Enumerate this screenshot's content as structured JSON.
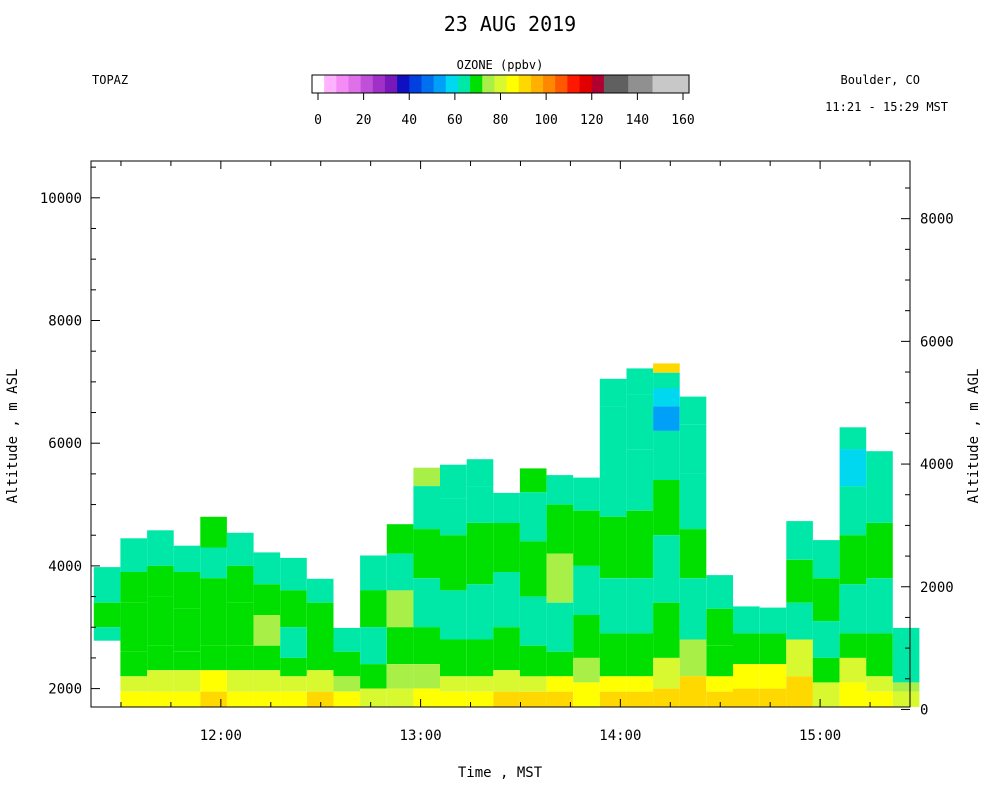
{
  "header": {
    "left_label": "TOPAZ",
    "right_label": "Boulder, CO",
    "time_range": "11:21 - 15:29 MST"
  },
  "colorbar": {
    "title": "OZONE (ppbv)",
    "ticks": [
      "0",
      "20",
      "40",
      "60",
      "80",
      "100",
      "120",
      "140",
      "160"
    ],
    "min": 0,
    "max": 160,
    "colors": [
      "#ffffff",
      "#ffb3ff",
      "#f58cf5",
      "#e070e8",
      "#c050d8",
      "#a030c8",
      "#7818b8",
      "#1010c0",
      "#0040e0",
      "#0070f0",
      "#00a0f8",
      "#00d8f0",
      "#00e8a8",
      "#00e000",
      "#a8f048",
      "#d8f830",
      "#ffff00",
      "#ffd800",
      "#ffb000",
      "#ff8800",
      "#ff5800",
      "#ff1800",
      "#e00000",
      "#b00030",
      "#606060",
      "#606060",
      "#909090",
      "#909090",
      "#c8c8c8",
      "#c8c8c8",
      "#c8c8c8"
    ]
  },
  "chart_data": {
    "type": "heatmap",
    "title": "23 AUG 2019",
    "xlabel": "Time , MST",
    "ylabel_left": "Altitude , m ASL",
    "ylabel_right": "Altitude , m AGL",
    "variable": "OZONE (ppbv)",
    "x_ticks": [
      "12:00",
      "13:00",
      "14:00",
      "15:00"
    ],
    "x_tick_hours": [
      12,
      13,
      14,
      15
    ],
    "x_range_hours": [
      11.35,
      15.45
    ],
    "y_left_range": [
      1700,
      10600
    ],
    "y_left_ticks": [
      2000,
      4000,
      6000,
      8000,
      10000
    ],
    "y_right_offset_m": 1660,
    "y_right_ticks": [
      0,
      2000,
      4000,
      6000,
      8000
    ],
    "grid": false,
    "profiles": [
      {
        "time": "11:22",
        "bottom": 2780,
        "top": 3980,
        "levels": [
          [
            3980,
            64
          ],
          [
            3400,
            70
          ],
          [
            3000,
            64
          ]
        ]
      },
      {
        "time": "11:30",
        "bottom": 1700,
        "top": 4450,
        "levels": [
          [
            4450,
            64
          ],
          [
            3900,
            70
          ],
          [
            3400,
            72
          ],
          [
            2600,
            70
          ],
          [
            2200,
            82
          ],
          [
            1950,
            86
          ]
        ]
      },
      {
        "time": "11:38",
        "bottom": 1700,
        "top": 4580,
        "levels": [
          [
            4580,
            64
          ],
          [
            4000,
            70
          ],
          [
            3500,
            72
          ],
          [
            2700,
            70
          ],
          [
            2300,
            80
          ],
          [
            1950,
            86
          ]
        ]
      },
      {
        "time": "11:46",
        "bottom": 1700,
        "top": 4330,
        "levels": [
          [
            4330,
            64
          ],
          [
            3900,
            70
          ],
          [
            3300,
            72
          ],
          [
            2600,
            70
          ],
          [
            2300,
            82
          ],
          [
            1950,
            86
          ]
        ]
      },
      {
        "time": "11:54",
        "bottom": 1700,
        "top": 4800,
        "levels": [
          [
            4800,
            70
          ],
          [
            4300,
            66
          ],
          [
            3800,
            72
          ],
          [
            2700,
            70
          ],
          [
            2300,
            84
          ],
          [
            1950,
            88
          ]
        ]
      },
      {
        "time": "12:02",
        "bottom": 1700,
        "top": 4540,
        "levels": [
          [
            4540,
            64
          ],
          [
            4000,
            70
          ],
          [
            3400,
            72
          ],
          [
            2700,
            70
          ],
          [
            2300,
            82
          ],
          [
            1950,
            86
          ]
        ]
      },
      {
        "time": "12:10",
        "bottom": 1700,
        "top": 4220,
        "levels": [
          [
            4220,
            66
          ],
          [
            3700,
            72
          ],
          [
            3200,
            76
          ],
          [
            2700,
            70
          ],
          [
            2300,
            80
          ],
          [
            1950,
            86
          ]
        ]
      },
      {
        "time": "12:18",
        "bottom": 1700,
        "top": 4130,
        "levels": [
          [
            4130,
            64
          ],
          [
            3600,
            70
          ],
          [
            3000,
            66
          ],
          [
            2500,
            72
          ],
          [
            2200,
            82
          ],
          [
            1950,
            86
          ]
        ]
      },
      {
        "time": "12:26",
        "bottom": 1700,
        "top": 3790,
        "levels": [
          [
            3790,
            66
          ],
          [
            3400,
            72
          ],
          [
            2800,
            70
          ],
          [
            2300,
            82
          ],
          [
            1950,
            88
          ]
        ]
      },
      {
        "time": "12:34",
        "bottom": 1700,
        "top": 2990,
        "levels": [
          [
            2990,
            66
          ],
          [
            2600,
            72
          ],
          [
            2200,
            76
          ],
          [
            1950,
            84
          ]
        ]
      },
      {
        "time": "12:42",
        "bottom": 1700,
        "top": 4170,
        "levels": [
          [
            4170,
            64
          ],
          [
            3600,
            70
          ],
          [
            3000,
            66
          ],
          [
            2400,
            72
          ],
          [
            2000,
            82
          ]
        ]
      },
      {
        "time": "12:50",
        "bottom": 1700,
        "top": 4680,
        "levels": [
          [
            4680,
            70
          ],
          [
            4200,
            66
          ],
          [
            3600,
            76
          ],
          [
            3000,
            70
          ],
          [
            2400,
            74
          ],
          [
            2000,
            82
          ]
        ]
      },
      {
        "time": "12:58",
        "bottom": 1700,
        "top": 5600,
        "levels": [
          [
            5600,
            76
          ],
          [
            5300,
            64
          ],
          [
            4600,
            70
          ],
          [
            3800,
            66
          ],
          [
            3000,
            72
          ],
          [
            2400,
            76
          ],
          [
            2000,
            86
          ]
        ]
      },
      {
        "time": "13:06",
        "bottom": 1700,
        "top": 5650,
        "levels": [
          [
            5650,
            66
          ],
          [
            5100,
            62
          ],
          [
            4500,
            70
          ],
          [
            3600,
            66
          ],
          [
            2800,
            72
          ],
          [
            2200,
            80
          ],
          [
            1950,
            86
          ]
        ]
      },
      {
        "time": "13:14",
        "bottom": 1700,
        "top": 5740,
        "levels": [
          [
            5740,
            66
          ],
          [
            5300,
            62
          ],
          [
            4700,
            70
          ],
          [
            3700,
            64
          ],
          [
            2800,
            72
          ],
          [
            2200,
            80
          ],
          [
            1950,
            86
          ]
        ]
      },
      {
        "time": "13:22",
        "bottom": 1700,
        "top": 5190,
        "levels": [
          [
            5190,
            64
          ],
          [
            4700,
            70
          ],
          [
            3900,
            66
          ],
          [
            3000,
            72
          ],
          [
            2300,
            80
          ],
          [
            1950,
            90
          ]
        ]
      },
      {
        "time": "13:30",
        "bottom": 1700,
        "top": 5590,
        "levels": [
          [
            5590,
            72
          ],
          [
            5200,
            66
          ],
          [
            4400,
            70
          ],
          [
            3500,
            64
          ],
          [
            2700,
            70
          ],
          [
            2200,
            82
          ],
          [
            1950,
            90
          ]
        ]
      },
      {
        "time": "13:38",
        "bottom": 1700,
        "top": 5480,
        "levels": [
          [
            5480,
            64
          ],
          [
            5000,
            70
          ],
          [
            4200,
            74
          ],
          [
            3400,
            66
          ],
          [
            2600,
            72
          ],
          [
            2200,
            84
          ],
          [
            1950,
            88
          ]
        ]
      },
      {
        "time": "13:46",
        "bottom": 1700,
        "top": 5440,
        "levels": [
          [
            5440,
            64
          ],
          [
            4900,
            70
          ],
          [
            4000,
            66
          ],
          [
            3200,
            72
          ],
          [
            2500,
            76
          ],
          [
            2100,
            86
          ]
        ]
      },
      {
        "time": "13:54",
        "bottom": 1700,
        "top": 7050,
        "levels": [
          [
            7050,
            64
          ],
          [
            6600,
            62
          ],
          [
            5800,
            66
          ],
          [
            4800,
            70
          ],
          [
            3800,
            66
          ],
          [
            2900,
            72
          ],
          [
            2200,
            84
          ],
          [
            1950,
            90
          ]
        ]
      },
      {
        "time": "14:02",
        "bottom": 1700,
        "top": 7220,
        "levels": [
          [
            7220,
            66
          ],
          [
            6800,
            62
          ],
          [
            5900,
            64
          ],
          [
            4900,
            70
          ],
          [
            3800,
            66
          ],
          [
            2900,
            72
          ],
          [
            2200,
            84
          ],
          [
            1950,
            90
          ]
        ]
      },
      {
        "time": "14:10",
        "bottom": 1700,
        "top": 7300,
        "levels": [
          [
            7300,
            90
          ],
          [
            7150,
            66
          ],
          [
            6900,
            60
          ],
          [
            6600,
            56
          ],
          [
            6200,
            64
          ],
          [
            5400,
            70
          ],
          [
            4500,
            66
          ],
          [
            3400,
            72
          ],
          [
            2500,
            82
          ],
          [
            2000,
            90
          ]
        ]
      },
      {
        "time": "14:18",
        "bottom": 1700,
        "top": 6760,
        "levels": [
          [
            6760,
            66
          ],
          [
            6300,
            64
          ],
          [
            5500,
            62
          ],
          [
            4600,
            70
          ],
          [
            3800,
            64
          ],
          [
            2800,
            76
          ],
          [
            2200,
            88
          ]
        ]
      },
      {
        "time": "14:26",
        "bottom": 1700,
        "top": 3850,
        "levels": [
          [
            3850,
            66
          ],
          [
            3300,
            72
          ],
          [
            2700,
            70
          ],
          [
            2200,
            86
          ],
          [
            1950,
            90
          ]
        ]
      },
      {
        "time": "14:34",
        "bottom": 1700,
        "top": 3340,
        "levels": [
          [
            3340,
            66
          ],
          [
            2900,
            72
          ],
          [
            2400,
            84
          ],
          [
            2000,
            92
          ]
        ]
      },
      {
        "time": "14:42",
        "bottom": 1700,
        "top": 3320,
        "levels": [
          [
            3320,
            66
          ],
          [
            2900,
            72
          ],
          [
            2400,
            86
          ],
          [
            2000,
            92
          ]
        ]
      },
      {
        "time": "14:50",
        "bottom": 1700,
        "top": 4730,
        "levels": [
          [
            4730,
            66
          ],
          [
            4100,
            70
          ],
          [
            3400,
            66
          ],
          [
            2800,
            82
          ],
          [
            2200,
            88
          ]
        ]
      },
      {
        "time": "14:58",
        "bottom": 1700,
        "top": 4420,
        "levels": [
          [
            4420,
            64
          ],
          [
            3800,
            70
          ],
          [
            3100,
            66
          ],
          [
            2500,
            72
          ],
          [
            2100,
            82
          ]
        ]
      },
      {
        "time": "15:06",
        "bottom": 1700,
        "top": 6260,
        "levels": [
          [
            6260,
            64
          ],
          [
            5900,
            60
          ],
          [
            5300,
            66
          ],
          [
            4500,
            70
          ],
          [
            3700,
            66
          ],
          [
            2900,
            72
          ],
          [
            2500,
            78
          ],
          [
            2100,
            86
          ]
        ]
      },
      {
        "time": "15:14",
        "bottom": 1700,
        "top": 5870,
        "levels": [
          [
            5870,
            62
          ],
          [
            5400,
            66
          ],
          [
            4700,
            70
          ],
          [
            3800,
            66
          ],
          [
            2900,
            72
          ],
          [
            2200,
            80
          ],
          [
            1950,
            86
          ]
        ]
      },
      {
        "time": "15:22",
        "bottom": 1700,
        "top": 2990,
        "levels": [
          [
            2990,
            64
          ],
          [
            2500,
            66
          ],
          [
            2100,
            74
          ],
          [
            1950,
            80
          ]
        ]
      }
    ]
  }
}
